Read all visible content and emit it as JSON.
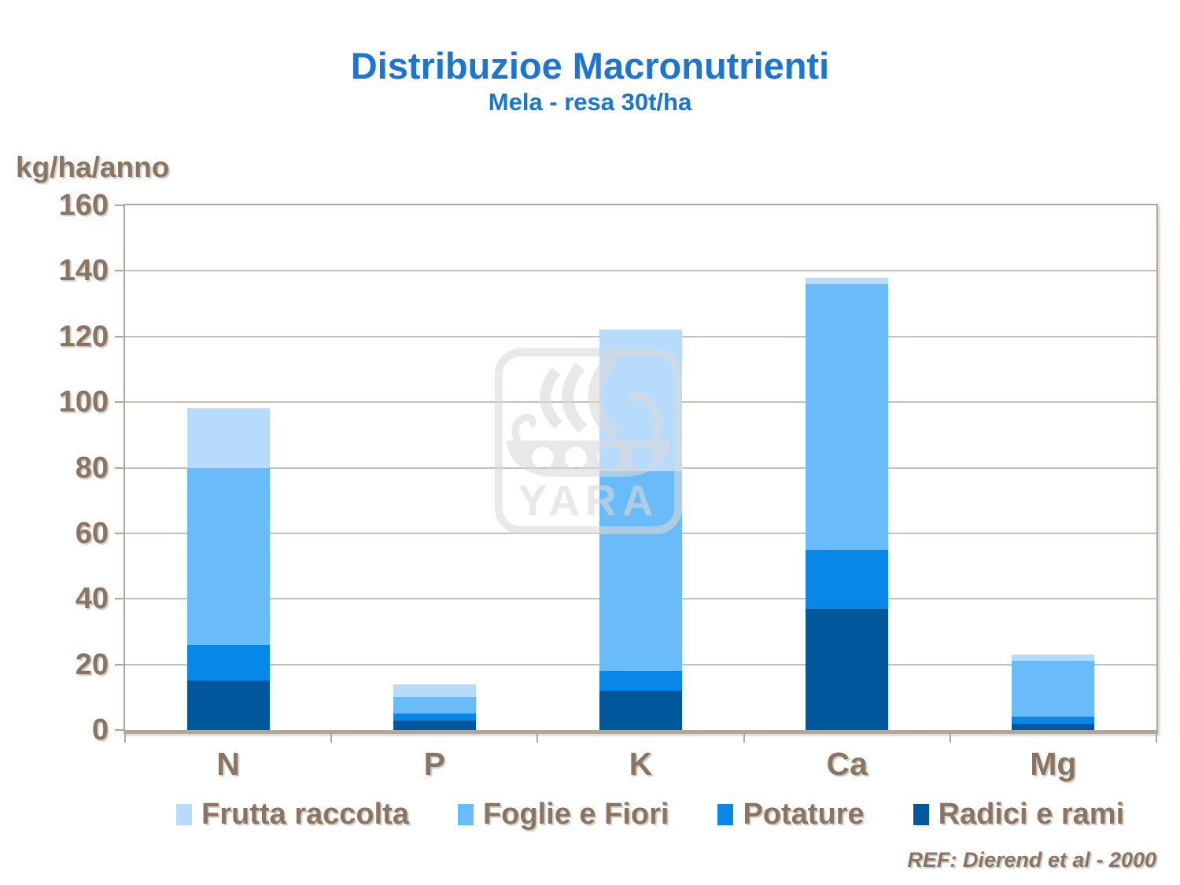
{
  "header": {
    "title": "Distribuzioe Macronutrienti",
    "subtitle": "Mela - resa 30t/ha"
  },
  "footer": {
    "reference": "REF: Dierend et al - 2000"
  },
  "watermark": {
    "wordmark": "YARA"
  },
  "colors": {
    "title_blue": "#1B75D2",
    "text_brown": "#8A7462",
    "axis_frame": "#B1A69A",
    "gridline": "#C9BFB3",
    "watermark_gray": "#D9D9D9"
  },
  "chart_data": {
    "type": "bar",
    "stacked": true,
    "title": "Distribuzioe Macronutrienti",
    "subtitle": "Mela - resa 30t/ha",
    "ylabel": "kg/ha/anno",
    "xlabel": "",
    "categories": [
      "N",
      "P",
      "K",
      "Ca",
      "Mg"
    ],
    "series": [
      {
        "name": "Radici e rami",
        "color": "#01579B",
        "values": [
          15,
          3,
          12,
          37,
          2
        ]
      },
      {
        "name": "Potature",
        "color": "#0787E8",
        "values": [
          11,
          2,
          6,
          18,
          2
        ]
      },
      {
        "name": "Foglie e Fiori",
        "color": "#69BBFA",
        "values": [
          54,
          5,
          61,
          81,
          17
        ]
      },
      {
        "name": "Frutta raccolta",
        "color": "#B7DCFB",
        "values": [
          18,
          4,
          43,
          2,
          2
        ]
      }
    ],
    "ylim": [
      0,
      160
    ],
    "ytick_step": 20,
    "grid": true,
    "legend_position": "bottom",
    "legend_order": [
      "Frutta raccolta",
      "Foglie e Fiori",
      "Potature",
      "Radici e rami"
    ]
  }
}
